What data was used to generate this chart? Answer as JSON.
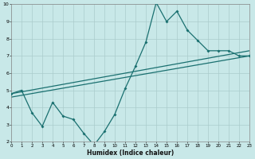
{
  "xlabel": "Humidex (Indice chaleur)",
  "bg_color": "#c8e8e8",
  "grid_color": "#aacccc",
  "line_color": "#1a7070",
  "xmin": 0,
  "xmax": 23,
  "ymin": 2,
  "ymax": 10,
  "jagged_x": [
    0,
    1,
    2,
    3,
    4,
    5,
    6,
    7,
    8,
    9,
    10,
    11,
    12,
    13,
    14,
    15,
    16,
    17,
    18,
    19,
    20,
    21,
    22,
    23
  ],
  "jagged_y": [
    4.8,
    5.0,
    3.7,
    2.9,
    4.3,
    3.5,
    3.3,
    2.5,
    1.8,
    2.6,
    3.6,
    5.1,
    6.4,
    7.8,
    10.1,
    9.0,
    9.6,
    8.5,
    7.9,
    7.3,
    7.3,
    7.3,
    7.0,
    7.0
  ],
  "upper_line_x": [
    0,
    23
  ],
  "upper_line_y": [
    4.8,
    7.3
  ],
  "lower_line_x": [
    0,
    23
  ],
  "lower_line_y": [
    4.6,
    7.0
  ],
  "yticks": [
    2,
    3,
    4,
    5,
    6,
    7,
    8,
    9,
    10
  ],
  "xticks": [
    0,
    1,
    2,
    3,
    4,
    5,
    6,
    7,
    8,
    9,
    10,
    11,
    12,
    13,
    14,
    15,
    16,
    17,
    18,
    19,
    20,
    21,
    22,
    23
  ]
}
